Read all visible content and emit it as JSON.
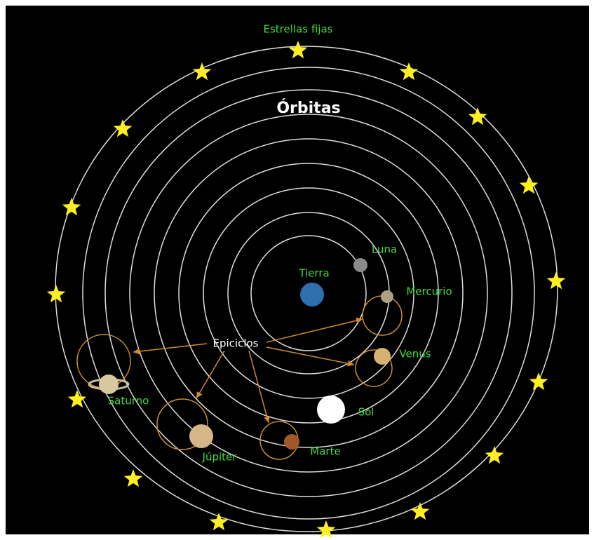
{
  "title": "Estrellas fijas",
  "subtitle": "Órbitas",
  "callout": "Epiciclos",
  "nodes": [
    {
      "label": "Tierra"
    },
    {
      "label": "Luna"
    },
    {
      "label": "Mercurio"
    },
    {
      "label": "Venus"
    },
    {
      "label": "Sol"
    },
    {
      "label": "Marte"
    },
    {
      "label": "Júpiter"
    },
    {
      "label": "Saturno"
    }
  ]
}
